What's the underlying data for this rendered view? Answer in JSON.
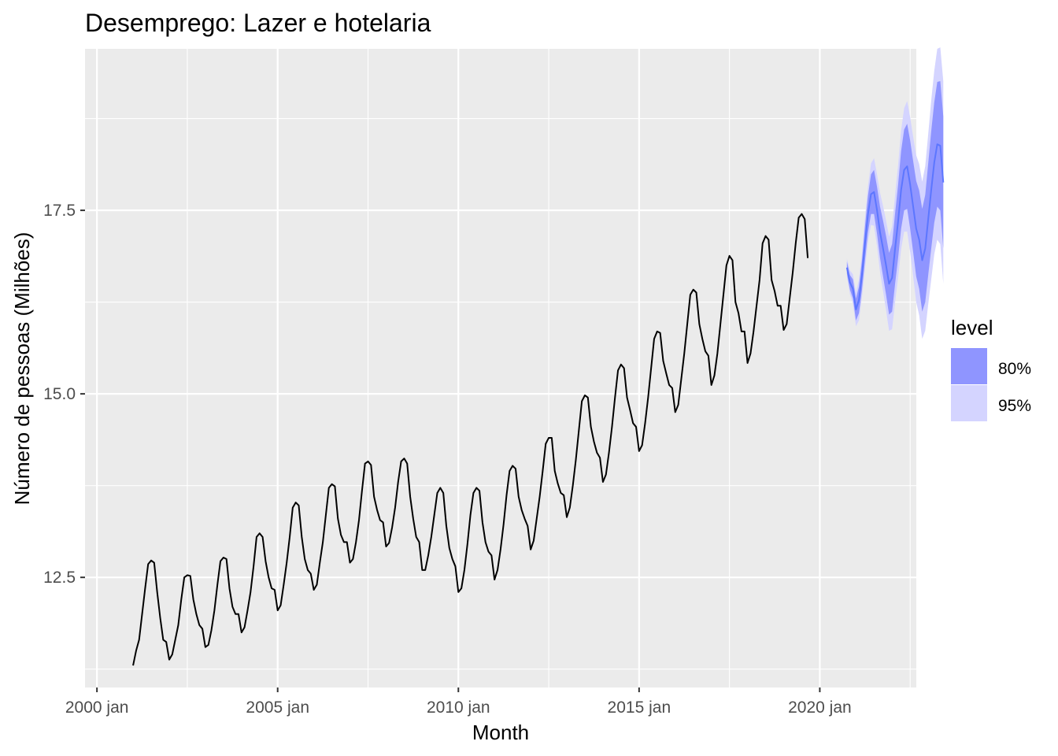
{
  "chart_data": {
    "type": "line",
    "title": "Desemprego: Lazer e hotelaria",
    "xlabel": "Month",
    "ylabel": "Número de pessoas (Milhões)",
    "xlim": [
      2000.67,
      2023.67
    ],
    "ylim": [
      11.0,
      19.7
    ],
    "x_ticks": [
      {
        "value": 2001.0,
        "label": "2000 jan"
      },
      {
        "value": 2006.0,
        "label": "2005 jan"
      },
      {
        "value": 2011.0,
        "label": "2010 jan"
      },
      {
        "value": 2016.0,
        "label": "2015 jan"
      },
      {
        "value": 2021.0,
        "label": "2020 jan"
      }
    ],
    "y_ticks": [
      {
        "value": 12.5,
        "label": "12.5"
      },
      {
        "value": 15.0,
        "label": "15.0"
      },
      {
        "value": 17.5,
        "label": "17.5"
      }
    ],
    "grid": true,
    "legend": {
      "title": "level",
      "position": "right",
      "entries": [
        {
          "label": "80%",
          "color": "#8f95ff"
        },
        {
          "label": "95%",
          "color": "#d4d4ff"
        }
      ]
    },
    "colors": {
      "panel": "#ebebeb",
      "grid_major": "#ffffff",
      "history_line": "#000000",
      "forecast_line": "#5c76ff",
      "band80": "#8f95ff",
      "band95": "#d4d4ff"
    },
    "history": {
      "start": 2002.0,
      "x_step": 0.0833333,
      "y": [
        11.3,
        11.5,
        11.65,
        12.0,
        12.35,
        12.68,
        12.73,
        12.7,
        12.3,
        11.95,
        11.65,
        11.62,
        11.38,
        11.45,
        11.65,
        11.85,
        12.2,
        12.5,
        12.53,
        12.52,
        12.2,
        12.0,
        11.85,
        11.8,
        11.55,
        11.58,
        11.78,
        12.05,
        12.4,
        12.72,
        12.77,
        12.75,
        12.35,
        12.1,
        12.0,
        12.0,
        11.75,
        11.82,
        12.05,
        12.3,
        12.65,
        13.05,
        13.1,
        13.05,
        12.72,
        12.5,
        12.35,
        12.33,
        12.05,
        12.12,
        12.4,
        12.7,
        13.05,
        13.45,
        13.52,
        13.48,
        13.05,
        12.75,
        12.6,
        12.55,
        12.33,
        12.4,
        12.7,
        12.98,
        13.35,
        13.72,
        13.77,
        13.74,
        13.3,
        13.08,
        12.98,
        12.98,
        12.7,
        12.75,
        12.98,
        13.28,
        13.68,
        14.05,
        14.08,
        14.03,
        13.6,
        13.42,
        13.28,
        13.25,
        12.92,
        12.97,
        13.18,
        13.45,
        13.8,
        14.08,
        14.12,
        14.05,
        13.6,
        13.3,
        13.05,
        12.98,
        12.6,
        12.6,
        12.8,
        13.05,
        13.35,
        13.65,
        13.72,
        13.65,
        13.2,
        12.9,
        12.75,
        12.65,
        12.3,
        12.35,
        12.6,
        12.95,
        13.35,
        13.65,
        13.72,
        13.68,
        13.25,
        12.98,
        12.85,
        12.8,
        12.47,
        12.6,
        12.88,
        13.22,
        13.62,
        13.95,
        14.02,
        13.98,
        13.6,
        13.42,
        13.3,
        13.2,
        12.88,
        13.0,
        13.3,
        13.6,
        13.95,
        14.32,
        14.4,
        14.4,
        13.95,
        13.78,
        13.65,
        13.62,
        13.32,
        13.45,
        13.75,
        14.1,
        14.5,
        14.9,
        14.98,
        14.95,
        14.55,
        14.35,
        14.2,
        14.13,
        13.8,
        13.9,
        14.2,
        14.55,
        14.95,
        15.32,
        15.4,
        15.35,
        14.95,
        14.78,
        14.6,
        14.55,
        14.22,
        14.3,
        14.6,
        14.95,
        15.35,
        15.75,
        15.85,
        15.83,
        15.45,
        15.28,
        15.12,
        15.08,
        14.75,
        14.85,
        15.2,
        15.55,
        15.95,
        16.35,
        16.42,
        16.38,
        15.95,
        15.75,
        15.58,
        15.52,
        15.12,
        15.25,
        15.55,
        15.95,
        16.35,
        16.75,
        16.88,
        16.82,
        16.25,
        16.1,
        15.85,
        15.85,
        15.42,
        15.55,
        15.85,
        16.2,
        16.55,
        17.05,
        17.15,
        17.1,
        16.55,
        16.4,
        16.2,
        16.2,
        15.87,
        15.95,
        16.3,
        16.65,
        17.05,
        17.4,
        17.45,
        17.38,
        16.85
      ]
    },
    "forecast": {
      "start": 2021.75,
      "x_step": 0.0833333,
      "mean": [
        16.72,
        16.52,
        16.43,
        16.15,
        16.28,
        16.62,
        17.05,
        17.45,
        17.72,
        17.75,
        17.5,
        17.2,
        16.98,
        16.75,
        16.5,
        16.58,
        16.98,
        17.35,
        17.78,
        18.05,
        18.1,
        17.85,
        17.55,
        17.25,
        17.1,
        16.82,
        16.98,
        17.38,
        17.78,
        18.15,
        18.4,
        18.38,
        17.88
      ],
      "lo80": [
        16.64,
        16.42,
        16.3,
        16.0,
        16.1,
        16.42,
        16.82,
        17.2,
        17.45,
        17.45,
        17.18,
        16.85,
        16.6,
        16.35,
        16.08,
        16.12,
        16.5,
        16.85,
        17.25,
        17.5,
        17.52,
        17.25,
        16.93,
        16.6,
        16.43,
        16.12,
        16.25,
        16.62,
        16.98,
        17.33,
        17.55,
        17.5,
        16.98
      ],
      "hi80": [
        16.8,
        16.62,
        16.56,
        16.3,
        16.46,
        16.82,
        17.28,
        17.7,
        17.99,
        18.05,
        17.82,
        17.55,
        17.36,
        17.15,
        16.92,
        17.04,
        17.46,
        17.85,
        18.31,
        18.6,
        18.68,
        18.45,
        18.17,
        17.9,
        17.77,
        17.52,
        17.71,
        18.14,
        18.58,
        18.97,
        19.25,
        19.26,
        18.78
      ],
      "lo95": [
        16.6,
        16.36,
        16.23,
        15.92,
        16.0,
        16.32,
        16.7,
        17.07,
        17.3,
        17.29,
        17.01,
        16.66,
        16.4,
        16.14,
        15.86,
        15.88,
        16.25,
        16.58,
        16.97,
        17.21,
        17.21,
        16.93,
        16.6,
        16.25,
        16.07,
        15.75,
        15.86,
        16.22,
        16.56,
        16.9,
        17.1,
        17.04,
        16.5
      ],
      "hi95": [
        16.84,
        16.68,
        16.63,
        16.38,
        16.56,
        16.92,
        17.4,
        17.83,
        18.14,
        18.21,
        17.99,
        17.74,
        17.56,
        17.36,
        17.14,
        17.28,
        17.71,
        18.12,
        18.59,
        18.89,
        18.99,
        18.77,
        18.5,
        18.25,
        18.13,
        17.89,
        18.1,
        18.54,
        19.0,
        19.4,
        19.7,
        19.72,
        19.26
      ]
    }
  }
}
